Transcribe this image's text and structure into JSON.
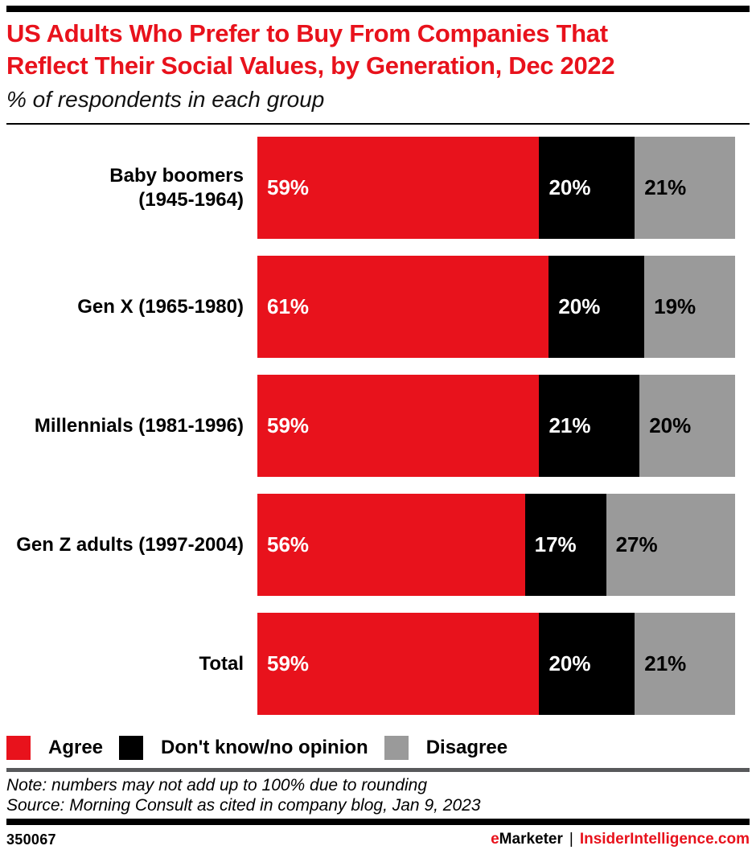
{
  "header": {
    "title_line1": "US Adults Who Prefer to Buy From Companies That",
    "title_line2": "Reflect Their Social Values, by Generation, Dec 2022",
    "subtitle": "% of respondents in each group"
  },
  "chart_data": {
    "type": "bar",
    "orientation": "horizontal",
    "stacked": true,
    "unit": "%",
    "xlim": [
      0,
      100
    ],
    "grid": false,
    "legend_position": "bottom",
    "categories": [
      "Baby boomers (1945-1964)",
      "Gen X (1965-1980)",
      "Millennials (1981-1996)",
      "Gen Z adults (1997-2004)",
      "Total"
    ],
    "category_display_lines": [
      [
        "Baby boomers",
        "(1945-1964)"
      ],
      [
        "Gen X (1965-1980)"
      ],
      [
        "Millennials (1981-1996)"
      ],
      [
        "Gen Z adults (1997-2004)"
      ],
      [
        "Total"
      ]
    ],
    "series": [
      {
        "name": "Agree",
        "slug": "agree",
        "color": "#e8121c",
        "value_label_color": "#ffffff",
        "values": [
          59,
          61,
          59,
          56,
          59
        ]
      },
      {
        "name": "Don't know/no opinion",
        "slug": "dont-know-no-opinion",
        "color": "#000000",
        "value_label_color": "#ffffff",
        "values": [
          20,
          20,
          21,
          17,
          20
        ]
      },
      {
        "name": "Disagree",
        "slug": "disagree",
        "color": "#9a9a9a",
        "value_label_color": "#000000",
        "values": [
          21,
          19,
          20,
          27,
          21
        ]
      }
    ]
  },
  "legend": [
    {
      "label": "Agree",
      "color": "#e8121c"
    },
    {
      "label": "Don't know/no opinion",
      "color": "#000000"
    },
    {
      "label": "Disagree",
      "color": "#9a9a9a"
    }
  ],
  "footnotes": {
    "note": "Note: numbers may not add up to 100% due to rounding",
    "source": "Source: Morning Consult as cited in company blog, Jan 9, 2023"
  },
  "footer": {
    "chart_id": "350067",
    "brand_e": "e",
    "brand_marketer": "Marketer",
    "separator": "|",
    "brand_site": "InsiderIntelligence.com"
  },
  "colors": {
    "accent_red": "#e8121c",
    "black": "#000000",
    "gray": "#9a9a9a",
    "dark_rule": "#58595b"
  }
}
